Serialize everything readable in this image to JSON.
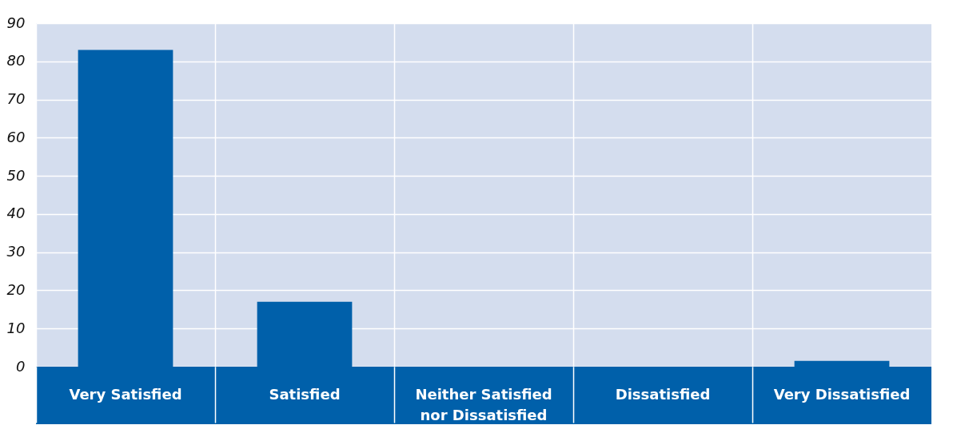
{
  "chart_data": {
    "type": "bar",
    "categories": [
      "Very Satisfied",
      "Satisfied",
      "Neither Satisfied\nnor Dissatisfied",
      "Dissatisfied",
      "Very Dissatisfied"
    ],
    "values": [
      83,
      17,
      0,
      0,
      1.5
    ],
    "color": "#0060aa",
    "ylim": [
      0,
      90
    ],
    "yticks": [
      0,
      10,
      20,
      30,
      40,
      50,
      60,
      70,
      80,
      90
    ],
    "grid": true
  }
}
